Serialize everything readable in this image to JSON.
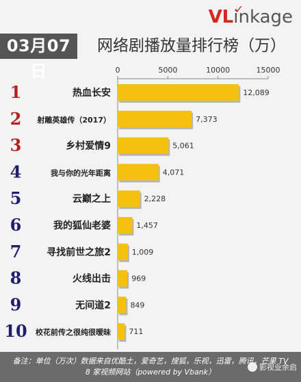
{
  "header": {
    "date": "03月07日",
    "title": "网络剧播放量排行榜（万）",
    "logo_v": "VL",
    "logo_rest": "inkage",
    "logo_check": "✓"
  },
  "chart_data": {
    "type": "bar",
    "orientation": "horizontal",
    "title": "网络剧播放量排行榜（万）",
    "xlim": [
      0,
      15000
    ],
    "xticks": [
      "0",
      "5000",
      "10000",
      "15000"
    ],
    "ranks": [
      "1",
      "2",
      "3",
      "4",
      "5",
      "6",
      "7",
      "8",
      "9",
      "10"
    ],
    "categories": [
      "热血长安",
      "射雕英雄传（2017）",
      "乡村爱情9",
      "我与你的光年距离",
      "云巅之上",
      "我的狐仙老婆",
      "寻找前世之旅2",
      "火线出击",
      "无间道2",
      "校花前传之很纯很暧昧"
    ],
    "values": [
      12089,
      7373,
      5061,
      4071,
      2228,
      1457,
      1009,
      969,
      849,
      711
    ],
    "value_labels": [
      "12,089",
      "7,373",
      "5,061",
      "4,071",
      "2,228",
      "1,457",
      "1,009",
      "969",
      "849",
      "711"
    ],
    "bar_color": "#f5c10f",
    "rank_color": "#b3221d"
  },
  "footer": {
    "note_line1": "备注：单位（万次）数据来自优酷土，爱奇艺，搜狐，乐视，迅雷，腾讯，芒果 TV",
    "note_line2": "8 家视频网站（powered by Vbank）",
    "watermark": "影视业余启"
  }
}
